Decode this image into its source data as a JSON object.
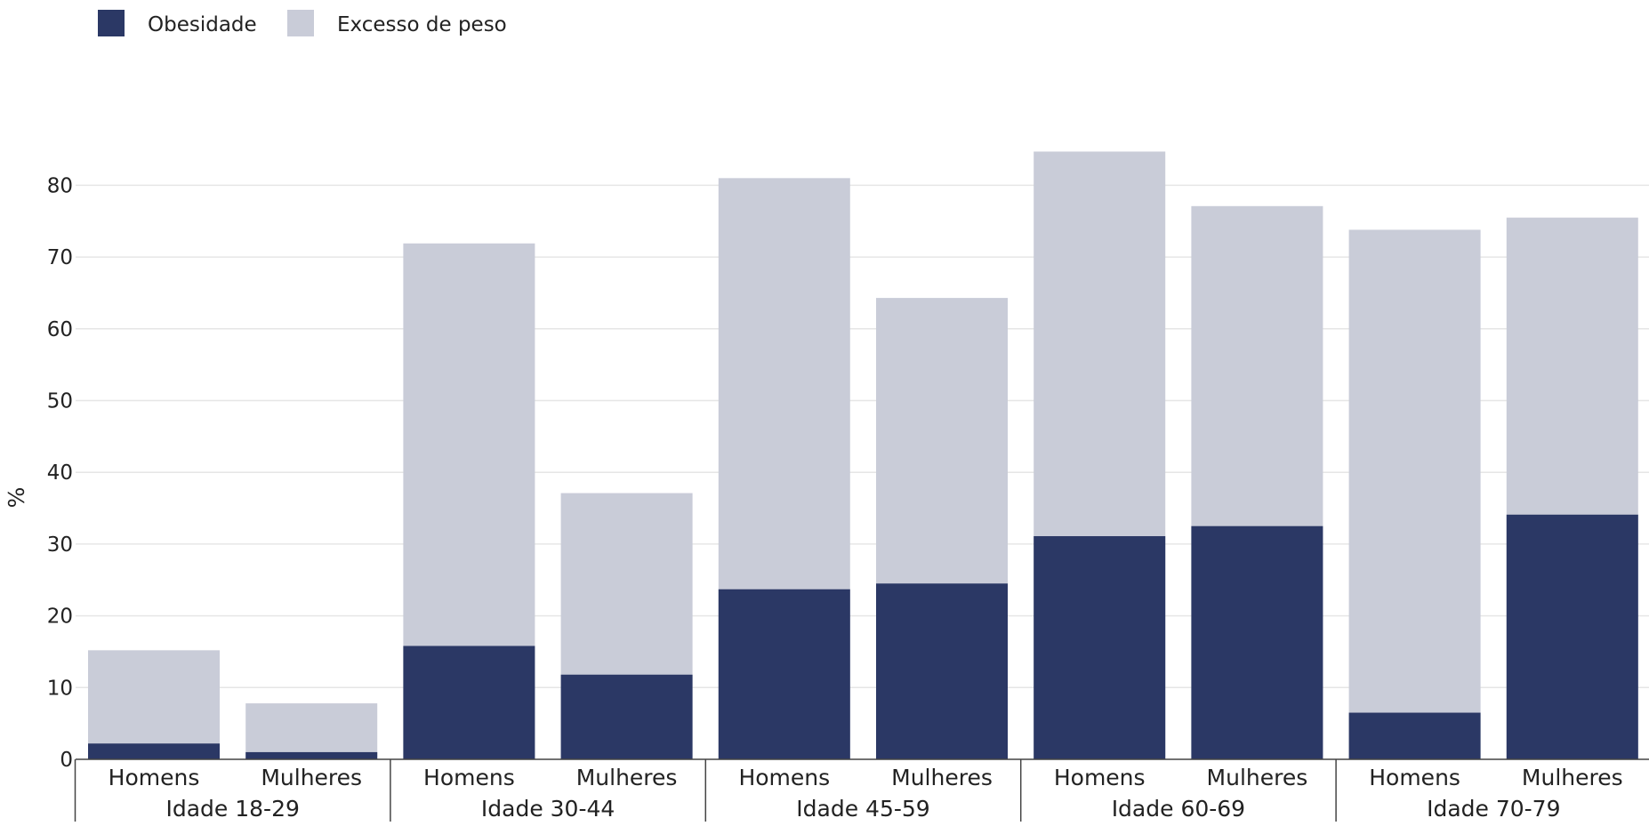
{
  "chart_data": {
    "type": "bar",
    "stacked": false,
    "overlapping": true,
    "ylabel": "%",
    "ylim": [
      0,
      88
    ],
    "yticks": [
      0,
      10,
      20,
      30,
      40,
      50,
      60,
      70,
      80
    ],
    "grid": true,
    "legend_position": "top-left",
    "groups": [
      "Idade 18-29",
      "Idade 30-44",
      "Idade 45-59",
      "Idade 60-69",
      "Idade 70-79"
    ],
    "subcategories": [
      "Homens",
      "Mulheres"
    ],
    "series": [
      {
        "name": "Excesso de peso",
        "color": "#c9ccd8",
        "values": [
          15.2,
          7.8,
          71.9,
          37.1,
          81.0,
          64.3,
          84.7,
          77.1,
          73.8,
          75.5
        ]
      },
      {
        "name": "Obesidade",
        "color": "#2b3865",
        "values": [
          2.2,
          1.0,
          15.8,
          11.8,
          23.7,
          24.5,
          31.1,
          32.5,
          6.5,
          34.1
        ]
      }
    ]
  },
  "legend": [
    {
      "label": "Obesidade",
      "color": "#2b3865"
    },
    {
      "label": "Excesso de peso",
      "color": "#c9ccd8"
    }
  ]
}
